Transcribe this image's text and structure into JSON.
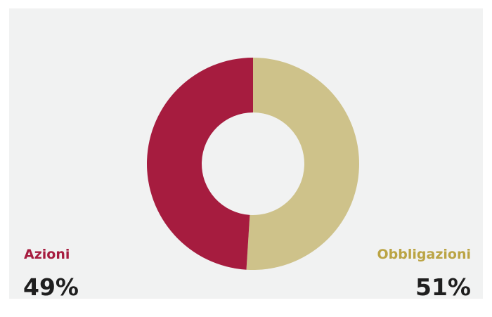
{
  "chart_data": {
    "type": "pie",
    "variant": "donut",
    "categories": [
      "Azioni",
      "Obbligazioni"
    ],
    "values": [
      49,
      51
    ],
    "colors": [
      "#a61c3f",
      "#cec28a"
    ],
    "labels": [
      "49%",
      "51%"
    ],
    "legend_placement": "bottom-left / bottom-right",
    "title": "",
    "start_angle": "12 o'clock",
    "direction": "clockwise-from-top for Obbligazioni, Azioni on left"
  },
  "colors": {
    "background": "#f1f2f2",
    "azioni": "#a61c3f",
    "obbligazioni": "#bba444",
    "value_text": "#1f1f1f"
  }
}
